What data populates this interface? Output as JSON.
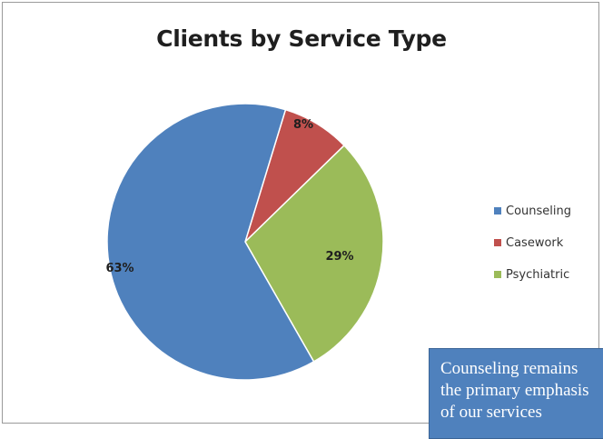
{
  "chart_data": {
    "type": "pie",
    "title": "Clients by Service Type",
    "categories": [
      "Counseling",
      "Casework",
      "Psychiatric"
    ],
    "values": [
      63,
      8,
      29
    ],
    "data_labels": [
      "63%",
      "8%",
      "29%"
    ],
    "colors": [
      "#4f81bd",
      "#c0504d",
      "#9bbb59"
    ],
    "legend_position": "right",
    "start_angle_note": "first slice clockwise from top"
  },
  "callout": {
    "text": "Counseling remains\nthe primary emphasis\nof our services"
  }
}
